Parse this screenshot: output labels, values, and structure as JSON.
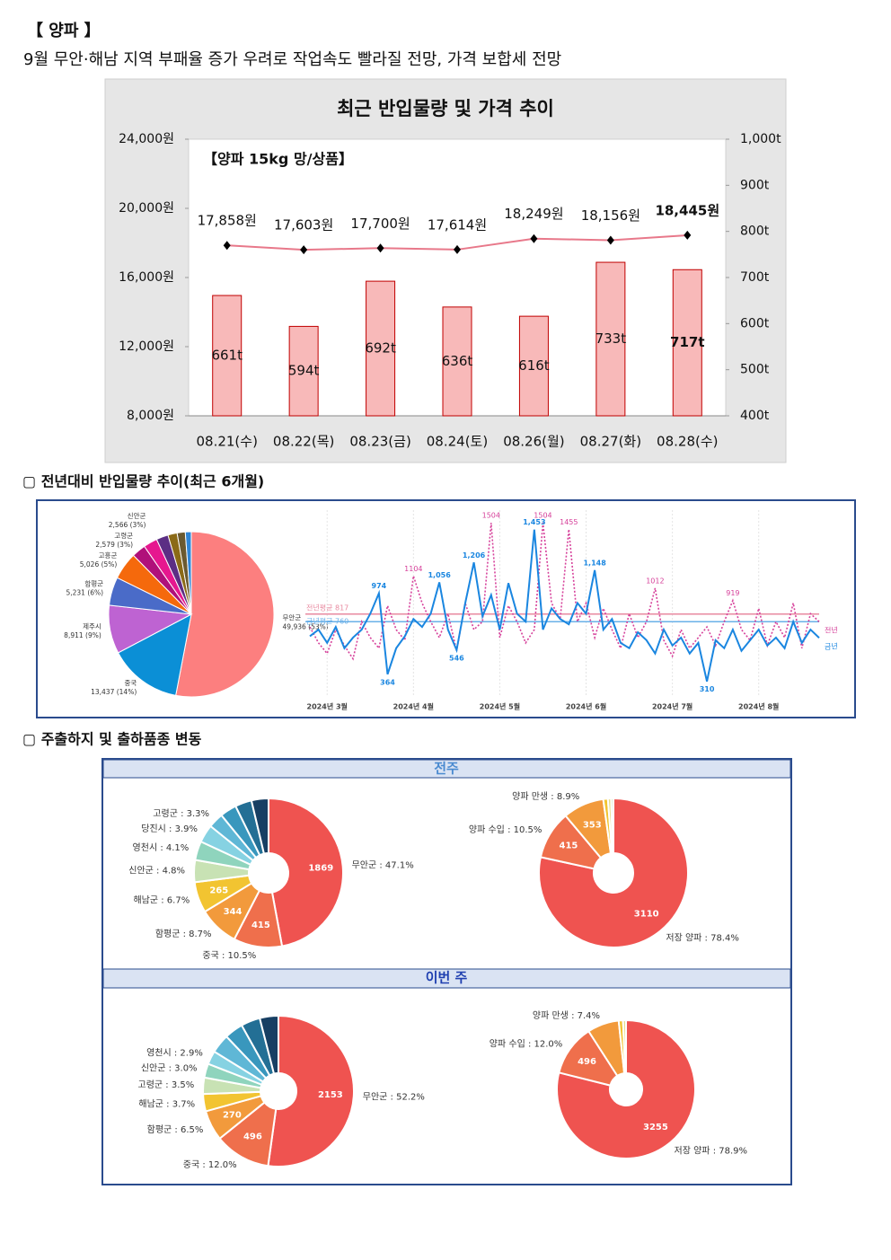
{
  "header": {
    "title": "【 양파 】",
    "subtitle": "9월 무안·해남 지역 부패율 증가 우려로 작업속도 빨라질 전망, 가격 보합세 전망"
  },
  "sections": [
    {
      "heading": "▢ 전년대비 반입물량 추이(최근 6개월)"
    },
    {
      "heading": "▢ 주출하지 및 출하품종 변동"
    }
  ],
  "panels": [
    "전주",
    "이번 주"
  ],
  "chart_data": [
    {
      "type": "combo",
      "title": "최근 반입물량 및 가격 추이",
      "annotation": "【양파 15kg 망/상품】",
      "categories": [
        "08.21(수)",
        "08.22(목)",
        "08.23(금)",
        "08.24(토)",
        "08.26(월)",
        "08.27(화)",
        "08.28(수)"
      ],
      "series": [
        {
          "type": "bar",
          "axis": "y2",
          "color": "#f8b9b9",
          "values": [
            661,
            594,
            692,
            636,
            616,
            733,
            717
          ],
          "value_labels": [
            "661t",
            "594t",
            "692t",
            "636t",
            "616t",
            "733t",
            "717t"
          ]
        },
        {
          "type": "line",
          "color": "#e8788a",
          "values": [
            17858,
            17603,
            17700,
            17614,
            18249,
            18156,
            18445
          ],
          "value_labels": [
            "17,858원",
            "17,603원",
            "17,700원",
            "17,614원",
            "18,249원",
            "18,156원",
            "18,445원"
          ]
        }
      ],
      "ylim": [
        8000,
        24000
      ],
      "yticks": [
        {
          "value": 8000,
          "label": "8,000원"
        },
        {
          "value": 12000,
          "label": "12,000원"
        },
        {
          "value": 16000,
          "label": "16,000원"
        },
        {
          "value": 20000,
          "label": "20,000원"
        },
        {
          "value": 24000,
          "label": "24,000원"
        }
      ],
      "y2lim": [
        400,
        1000
      ],
      "y2ticks": [
        {
          "value": 400,
          "label": "400t"
        },
        {
          "value": 500,
          "label": "500t"
        },
        {
          "value": 600,
          "label": "600t"
        },
        {
          "value": 700,
          "label": "700t"
        },
        {
          "value": 800,
          "label": "800t"
        },
        {
          "value": 900,
          "label": "900t"
        },
        {
          "value": 1000,
          "label": "1,000t"
        }
      ]
    },
    {
      "type": "pie",
      "labels": [
        "무안군",
        "중국",
        "제주시",
        "함평군",
        "고흥군",
        "고령군",
        "신안군",
        null,
        null,
        null,
        null
      ],
      "values": [
        49936,
        13437,
        8911,
        5231,
        5026,
        2579,
        2566,
        2200,
        1700,
        1500,
        1100
      ],
      "value_labels": [
        "49,936 (53%)",
        "13,437 (14%)",
        "8,911 (9%)",
        "5,231 (6%)",
        "5,026 (5%)",
        "2,579 (3%)",
        "2,566 (3%)",
        null,
        null,
        null,
        null
      ],
      "colors": [
        "#fc7f7f",
        "#0b8fd6",
        "#be63d2",
        "#4a6bc8",
        "#f5690c",
        "#b0107a",
        "#e6178f",
        "#5c2e84",
        "#8b6a17",
        "#6b5a30",
        "#2f86d6"
      ]
    },
    {
      "type": "line",
      "categories": [
        null,
        null,
        "2024년 3월",
        null,
        null,
        null,
        null,
        null,
        null,
        null,
        null,
        null,
        "2024년 4월",
        null,
        null,
        null,
        null,
        null,
        null,
        null,
        null,
        null,
        "2024년 5월",
        null,
        null,
        null,
        null,
        null,
        null,
        null,
        null,
        null,
        "2024년 6월",
        null,
        null,
        null,
        null,
        null,
        null,
        null,
        null,
        null,
        "2024년 7월",
        null,
        null,
        null,
        null,
        null,
        null,
        null,
        null,
        null,
        "2024년 8월",
        null,
        null,
        null,
        null,
        null,
        null,
        null
      ],
      "series": [
        {
          "name": "전년",
          "color": "#d6409a",
          "style": "dotted",
          "values": [
            720,
            600,
            520,
            700,
            580,
            480,
            760,
            640,
            560,
            880,
            700,
            620,
            1104,
            900,
            760,
            640,
            820,
            540,
            900,
            700,
            760,
            1504,
            640,
            880,
            760,
            600,
            700,
            1504,
            900,
            780,
            1455,
            760,
            900,
            640,
            860,
            700,
            560,
            820,
            640,
            760,
            1012,
            620,
            500,
            700,
            560,
            640,
            720,
            580,
            760,
            919,
            700,
            620,
            860,
            580,
            760,
            640,
            900,
            560,
            820,
            760
          ],
          "value_labels": [
            null,
            null,
            null,
            null,
            null,
            null,
            null,
            null,
            null,
            null,
            null,
            null,
            "1104",
            null,
            null,
            null,
            null,
            null,
            null,
            null,
            null,
            "1504",
            null,
            null,
            null,
            null,
            null,
            "1504",
            null,
            null,
            "1455",
            null,
            null,
            null,
            null,
            null,
            null,
            null,
            null,
            null,
            "1012",
            null,
            null,
            null,
            null,
            null,
            null,
            null,
            null,
            "919",
            null,
            null,
            null,
            null,
            null,
            null,
            null,
            null,
            null,
            null
          ]
        },
        {
          "name": "금년",
          "color": "#1a86e0",
          "style": "solid",
          "values": [
            650,
            700,
            600,
            720,
            560,
            640,
            700,
            820,
            974,
            364,
            560,
            650,
            780,
            720,
            820,
            1056,
            700,
            546,
            900,
            1206,
            800,
            960,
            700,
            1050,
            820,
            760,
            1453,
            700,
            860,
            780,
            740,
            900,
            820,
            1148,
            700,
            780,
            600,
            560,
            680,
            620,
            520,
            700,
            580,
            640,
            520,
            600,
            310,
            620,
            560,
            700,
            540,
            620,
            700,
            580,
            640,
            560,
            760,
            600,
            700,
            638
          ],
          "value_labels": [
            null,
            null,
            null,
            null,
            null,
            null,
            null,
            null,
            "974",
            "364",
            null,
            null,
            null,
            null,
            null,
            "1,056",
            null,
            "546",
            null,
            "1,206",
            null,
            null,
            null,
            null,
            null,
            null,
            "1,453",
            null,
            null,
            null,
            null,
            null,
            null,
            "1,148",
            null,
            null,
            null,
            null,
            null,
            null,
            null,
            null,
            null,
            null,
            null,
            null,
            "310",
            null,
            null,
            null,
            null,
            null,
            null,
            null,
            null,
            null,
            null,
            null,
            null,
            null
          ]
        }
      ],
      "averages": [
        {
          "label": "전년평균 817",
          "value": 817,
          "color": "#e88aa0"
        },
        {
          "label": "금년평균 760",
          "value": 760,
          "color": "#6ab0e8"
        }
      ],
      "ylim": [
        200,
        1600
      ]
    },
    {
      "type": "donut",
      "values": [
        47.1,
        10.5,
        8.7,
        6.7,
        4.8,
        4.1,
        3.9,
        3.3,
        3.6,
        3.6,
        3.7
      ],
      "value_labels": [
        "무안군 : 47.1%",
        "중국 : 10.5%",
        "함평군 : 8.7%",
        "해남군 : 6.7%",
        "신안군 : 4.8%",
        "영천시 : 4.1%",
        "당진시 : 3.9%",
        "고령군 : 3.3%",
        null,
        null,
        null
      ],
      "counts": [
        1869,
        415,
        344,
        265,
        null,
        null,
        null,
        null,
        null,
        null,
        null
      ],
      "colors": [
        "#ef5350",
        "#ef6f4c",
        "#f29a3c",
        "#f2c431",
        "#c8e2b4",
        "#8fd4bd",
        "#86d2e2",
        "#5fb7d6",
        "#3997bd",
        "#236f95",
        "#173f63"
      ]
    },
    {
      "type": "donut",
      "values": [
        78.4,
        10.5,
        8.9,
        1.0,
        0.7,
        0.5
      ],
      "value_labels": [
        "저장 양파 : 78.4%",
        "양파 수입 : 10.5%",
        "양파 만생 : 8.9%",
        null,
        null,
        null
      ],
      "counts": [
        3110,
        415,
        353,
        null,
        null,
        null
      ],
      "colors": [
        "#ef5350",
        "#ef6f4c",
        "#f29a3c",
        "#f2c431",
        "#e6dc8a",
        "#c8e2b4"
      ]
    },
    {
      "type": "donut",
      "values": [
        52.2,
        12.0,
        6.5,
        3.7,
        3.5,
        3.0,
        2.9,
        4.1,
        4.0,
        4.1,
        4.0
      ],
      "value_labels": [
        "무안군 : 52.2%",
        "중국 : 12.0%",
        "함평군 : 6.5%",
        "해남군 : 3.7%",
        "고령군 : 3.5%",
        "신안군 : 3.0%",
        "영천시 : 2.9%",
        null,
        null,
        null,
        null
      ],
      "counts": [
        2153,
        496,
        270,
        null,
        null,
        null,
        null,
        null,
        null,
        null,
        null
      ],
      "colors": [
        "#ef5350",
        "#ef6f4c",
        "#f29a3c",
        "#f2c431",
        "#c8e2b4",
        "#8fd4bd",
        "#86d2e2",
        "#5fb7d6",
        "#3997bd",
        "#236f95",
        "#173f63"
      ]
    },
    {
      "type": "donut",
      "values": [
        78.9,
        12.0,
        7.4,
        1.0,
        0.7
      ],
      "value_labels": [
        "저장 양파 : 78.9%",
        "양파 수입 : 12.0%",
        "양파 만생 : 7.4%",
        null,
        null
      ],
      "counts": [
        3255,
        496,
        null,
        null,
        null
      ],
      "colors": [
        "#ef5350",
        "#ef6f4c",
        "#f29a3c",
        "#f2c431",
        "#e6dc8a"
      ]
    }
  ]
}
